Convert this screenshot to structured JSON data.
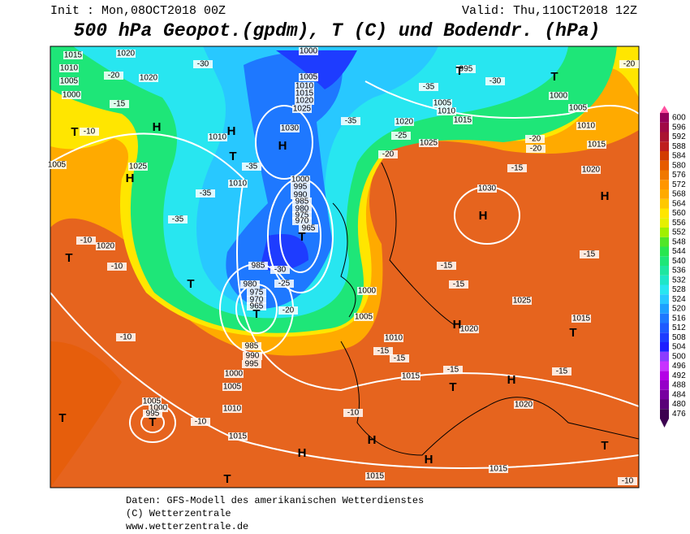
{
  "header": {
    "init": "Init : Mon,08OCT2018 00Z",
    "valid": "Valid: Thu,11OCT2018 12Z",
    "title": "500 hPa Geopot.(gpdm), T (C) und Bodendr. (hPa)"
  },
  "footer": {
    "source": "Daten: GFS-Modell des amerikanischen Wetterdienstes",
    "copyright": "(C) Wetterzentrale",
    "url": "www.wetterzentrale.de"
  },
  "colorbar": {
    "values": [
      476,
      480,
      484,
      488,
      492,
      496,
      500,
      504,
      508,
      512,
      516,
      520,
      524,
      528,
      532,
      536,
      540,
      544,
      548,
      552,
      556,
      560,
      564,
      568,
      572,
      576,
      580,
      584,
      588,
      592,
      596,
      600
    ],
    "colors": [
      "#3c0050",
      "#5a0078",
      "#7800a0",
      "#9600c8",
      "#b400e6",
      "#c832ff",
      "#8c3cff",
      "#1e1eff",
      "#1e3cff",
      "#1e5aff",
      "#1e78ff",
      "#1ea0ff",
      "#28c8ff",
      "#28e6f0",
      "#1ee6c8",
      "#1ee6a0",
      "#1ee678",
      "#28e650",
      "#50e628",
      "#a0f000",
      "#e6f000",
      "#ffe600",
      "#ffc800",
      "#ffaa00",
      "#ff9600",
      "#f07800",
      "#e65a00",
      "#d23c00",
      "#be1e1e",
      "#aa1432",
      "#a00a46",
      "#96005a"
    ]
  },
  "map": {
    "labels": [
      "1015",
      "1020",
      "1000",
      "1010",
      "1005",
      "1020",
      "1000",
      "1005",
      "1010",
      "1015",
      "1020",
      "1025",
      "1030",
      "H",
      "H",
      "H",
      "T",
      "H",
      "1025",
      "1010",
      "T",
      "1010",
      "1000",
      "995",
      "990",
      "985",
      "980",
      "975",
      "970",
      "965",
      "T",
      "985",
      "980",
      "975",
      "970",
      "965",
      "T",
      "T",
      "T",
      "1020",
      "995",
      "T",
      "T",
      "1000",
      "1005",
      "1005",
      "1010",
      "1015",
      "1020",
      "1025",
      "1010",
      "1015",
      "1020",
      "1030",
      "H",
      "H",
      "1025",
      "1015",
      "T",
      "1020",
      "H",
      "H",
      "1020",
      "1015",
      "T",
      "1010",
      "1005",
      "1000",
      "985",
      "990",
      "995",
      "1000",
      "1005",
      "1010",
      "1015",
      "1005",
      "1000",
      "995",
      "T",
      "T",
      "H",
      "H",
      "H",
      "T",
      "T",
      "1015",
      "1015",
      "1005",
      "-10",
      "-10",
      "-10",
      "-10",
      "-10",
      "-15",
      "-15",
      "-15",
      "-15",
      "-15",
      "-15",
      "-15",
      "-15",
      "-20",
      "-20",
      "-25",
      "-30",
      "-25",
      "-35",
      "-35",
      "-35",
      "-35",
      "-30",
      "-20",
      "-15",
      "-10",
      "-35",
      "-30",
      "-20",
      "-20",
      "-10",
      "-20"
    ]
  }
}
